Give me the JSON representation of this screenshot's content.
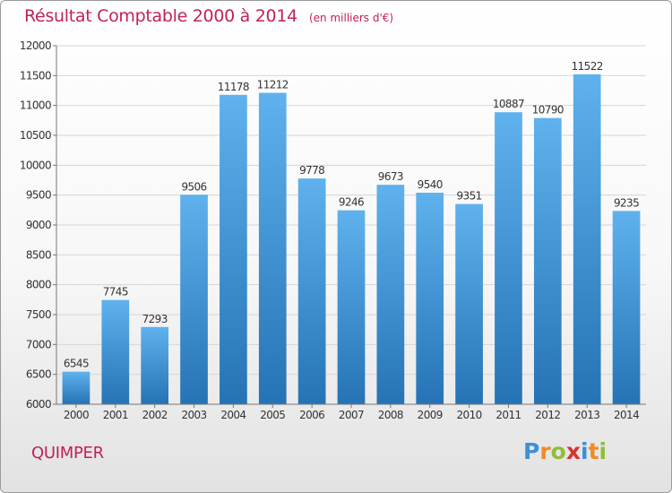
{
  "chart_data": {
    "type": "bar",
    "title": "Résultat Comptable 2000 à 2014",
    "subtitle": "(en milliers d'€)",
    "categories": [
      "2000",
      "2001",
      "2002",
      "2003",
      "2004",
      "2005",
      "2006",
      "2007",
      "2008",
      "2009",
      "2010",
      "2011",
      "2012",
      "2013",
      "2014"
    ],
    "values": [
      6545,
      7745,
      7293,
      9506,
      11178,
      11212,
      9778,
      9246,
      9673,
      9540,
      9351,
      10887,
      10790,
      11522,
      9235
    ],
    "value_labels": [
      "6545",
      "7745",
      "7293",
      "9506",
      "11178",
      "11212",
      "9778",
      "9246",
      "9673",
      "9540",
      "9351",
      "10887",
      "10790",
      "11522",
      "9235"
    ],
    "ylim": [
      6000,
      12000
    ],
    "yticks": [
      "6000",
      "6500",
      "7000",
      "7500",
      "8000",
      "8500",
      "9000",
      "9500",
      "10000",
      "10500",
      "11000",
      "11500",
      "12000"
    ],
    "grid": true,
    "bar_color_top": "#5fb2ee",
    "bar_color_bottom": "#2573b5"
  },
  "footer": {
    "city": "QUIMPER",
    "logo_letters": [
      {
        "ch": "P",
        "color": "#3d8fd6"
      },
      {
        "ch": "r",
        "color": "#ef8c24"
      },
      {
        "ch": "o",
        "color": "#8fbf35"
      },
      {
        "ch": "x",
        "color": "#d8342f"
      },
      {
        "ch": "i",
        "color": "#3d8fd6"
      },
      {
        "ch": "t",
        "color": "#ef8c24"
      },
      {
        "ch": "i",
        "color": "#8fbf35"
      }
    ]
  }
}
